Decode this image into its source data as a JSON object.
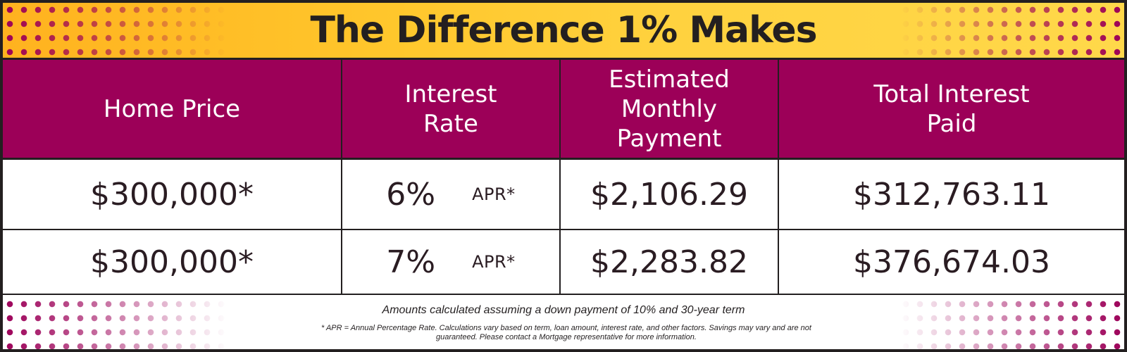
{
  "title": "The Difference 1% Makes",
  "colors": {
    "banner": "#ffc72c",
    "header_bg": "#9c0058",
    "text_dark": "#231f20",
    "dots": "#9c0058"
  },
  "table": {
    "headers": [
      "Home Price",
      "Interest\nRate",
      "Estimated Monthly\nPayment",
      "Total Interest\nPaid"
    ],
    "rows": [
      {
        "home_price": "$300,000*",
        "rate": "6%",
        "rate_suffix": "APR*",
        "monthly_payment": "$2,106.29",
        "total_interest": "$312,763.11"
      },
      {
        "home_price": "$300,000*",
        "rate": "7%",
        "rate_suffix": "APR*",
        "monthly_payment": "$2,283.82",
        "total_interest": "$376,674.03"
      }
    ]
  },
  "footer": {
    "note": "Amounts calculated assuming a down payment of 10% and 30-year term",
    "disclaimer": "* APR = Annual Percentage Rate. Calculations vary based on term, loan amount, interest rate, and other factors. Savings may vary and are not guaranteed. Please contact a Mortgage representative for more information."
  }
}
